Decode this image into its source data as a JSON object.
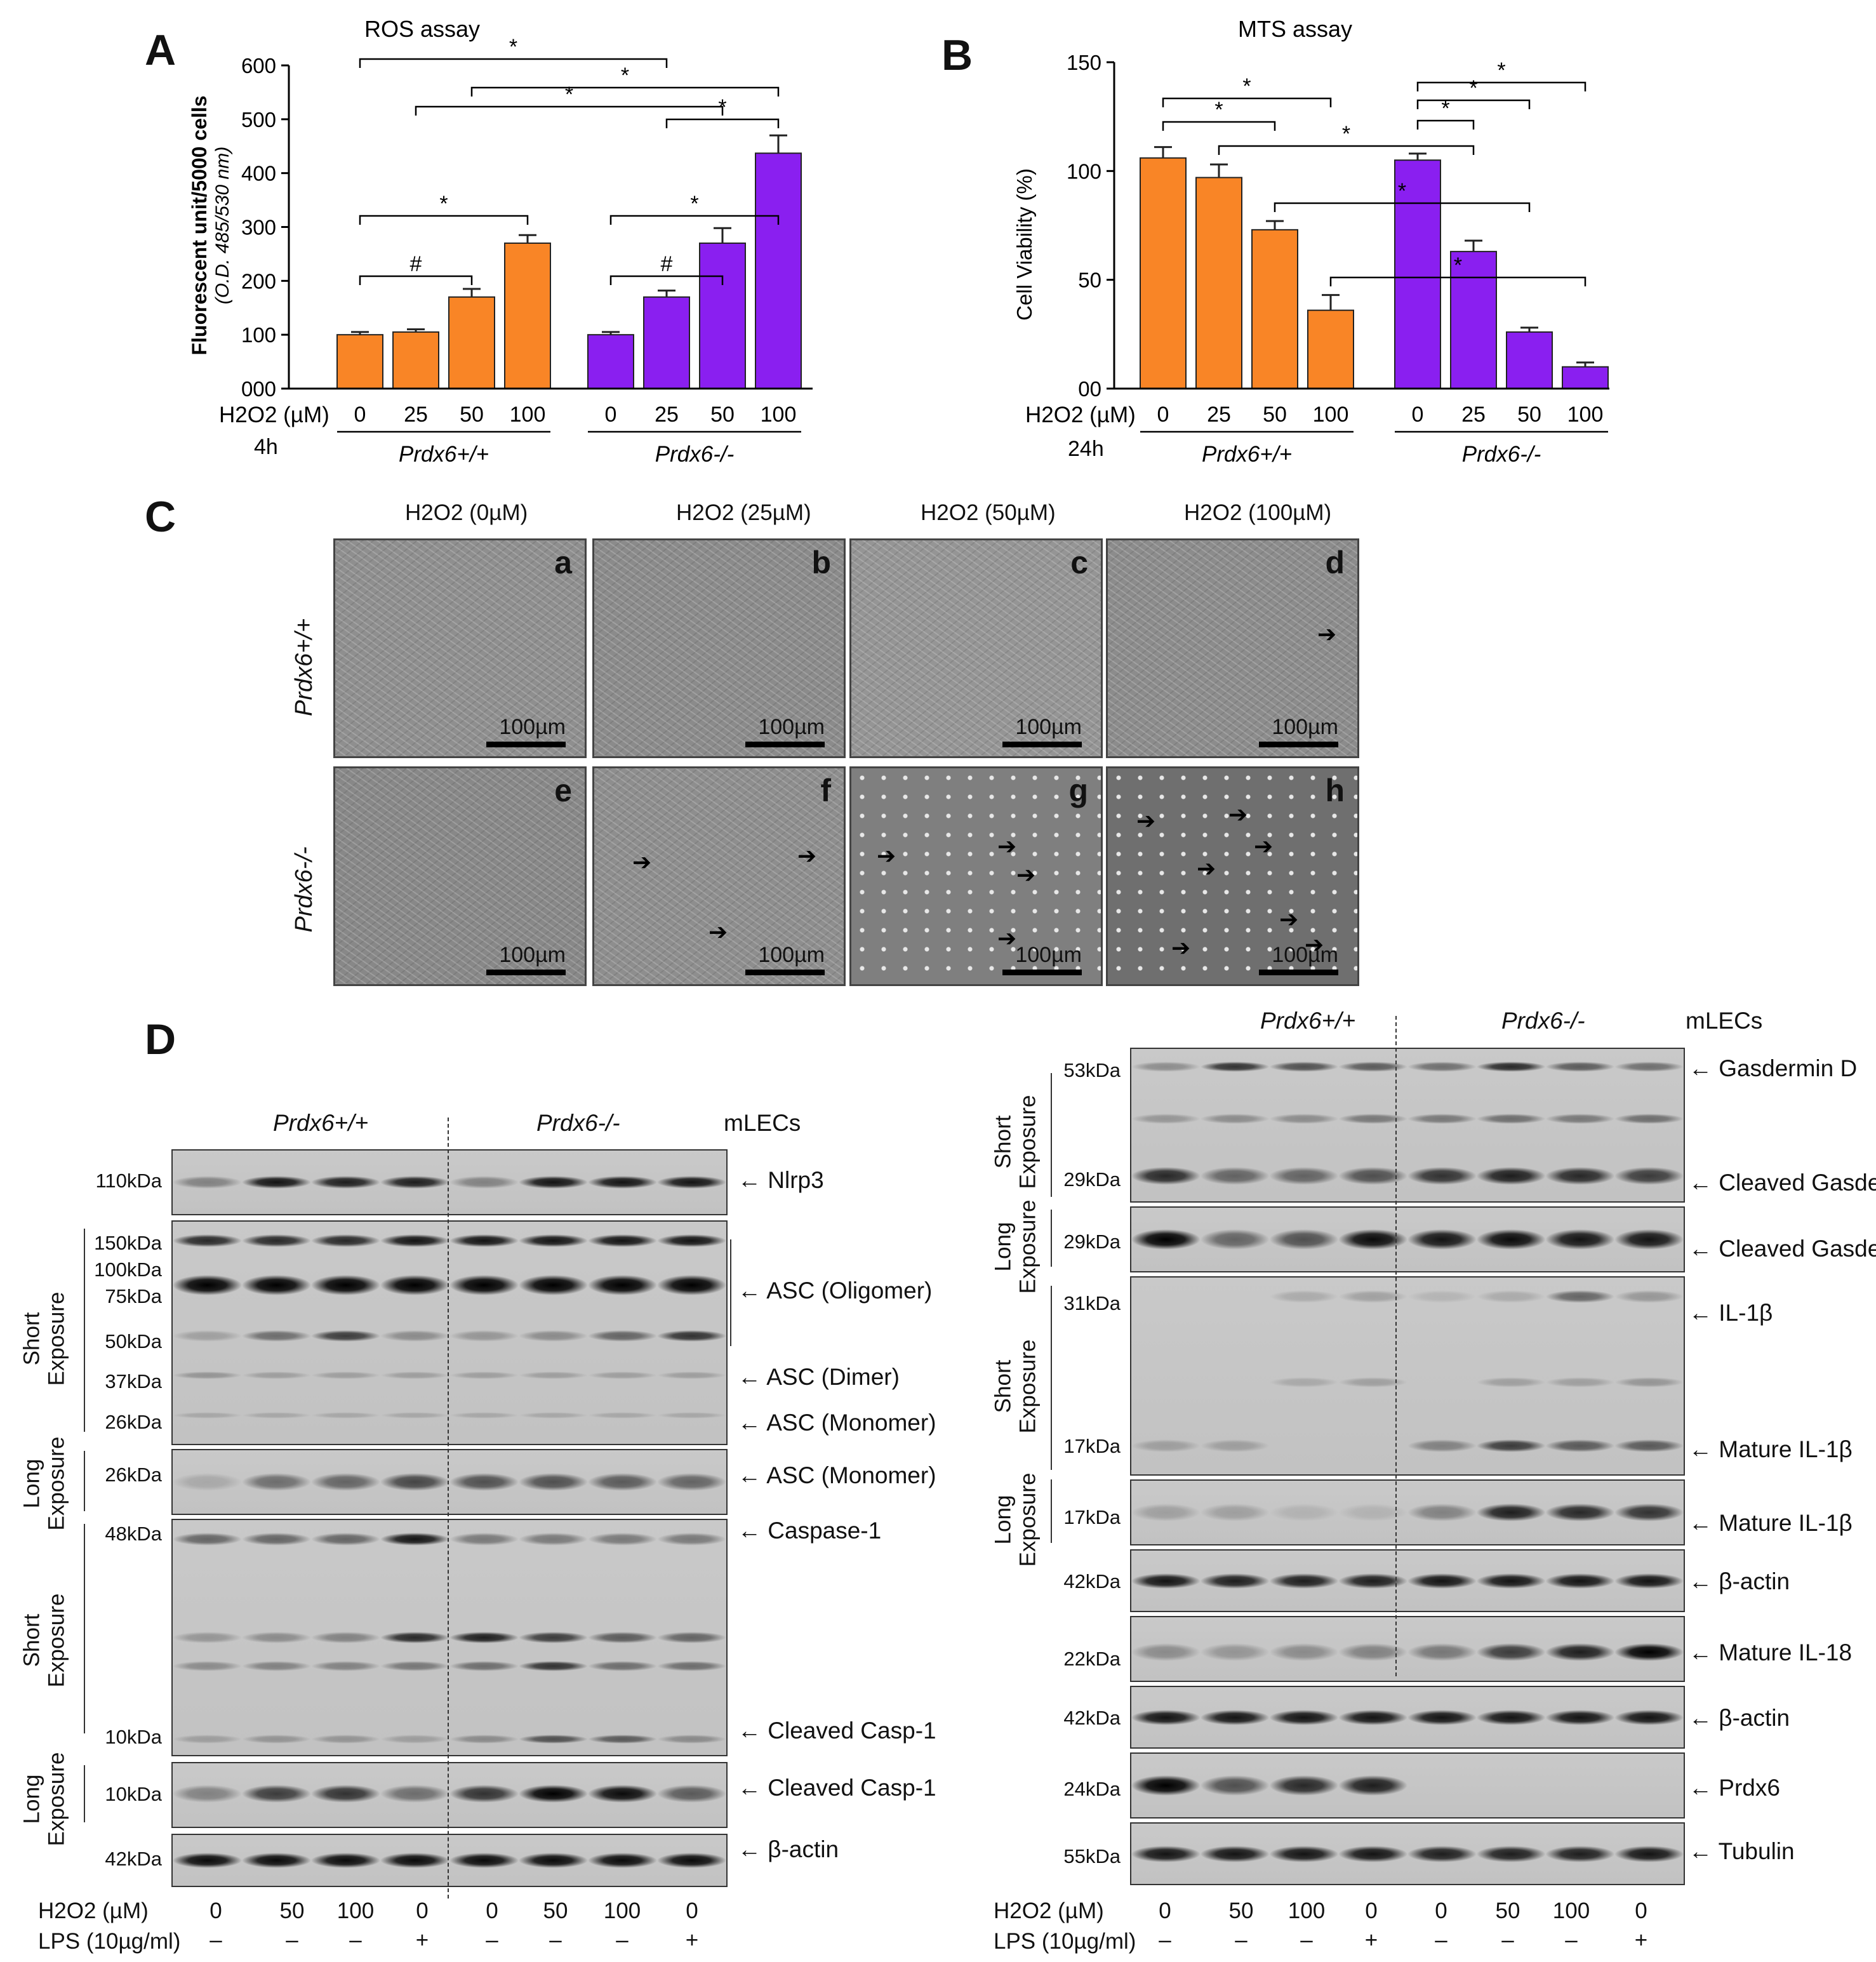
{
  "panels": {
    "a": "A",
    "b": "B",
    "c": "C",
    "d": "D"
  },
  "chart_data": [
    {
      "type": "bar",
      "title": "ROS assay",
      "ylabel": "Fluorescent unit/5000 cells",
      "ylabel_sub": "(O.D. 485/530 nm)",
      "xlabel": "H2O2 (µM)",
      "time": "4h",
      "ylim": [
        0,
        600
      ],
      "yticks": [
        "000",
        "100",
        "200",
        "300",
        "400",
        "500",
        "600"
      ],
      "groups": [
        {
          "name": "Prdx6+/+",
          "color": "#f98526",
          "categories": [
            "0",
            "25",
            "50",
            "100"
          ],
          "values": [
            100,
            105,
            170,
            270
          ],
          "errors": [
            5,
            5,
            15,
            15
          ]
        },
        {
          "name": "Prdx6-/-",
          "color": "#8a1ff0",
          "categories": [
            "0",
            "25",
            "50",
            "100"
          ],
          "values": [
            100,
            170,
            270,
            437
          ],
          "errors": [
            5,
            12,
            28,
            33
          ]
        }
      ],
      "annotations": [
        "*",
        "#",
        "*",
        "#",
        "*",
        "*",
        "*",
        "*"
      ]
    },
    {
      "type": "bar",
      "title": "MTS assay",
      "ylabel": "Cell Viability (%)",
      "xlabel": "H2O2 (µM)",
      "time": "24h",
      "ylim": [
        0,
        150
      ],
      "yticks": [
        "00",
        "50",
        "100",
        "150"
      ],
      "groups": [
        {
          "name": "Prdx6+/+",
          "color": "#f98526",
          "categories": [
            "0",
            "25",
            "50",
            "100"
          ],
          "values": [
            106,
            97,
            73,
            36
          ],
          "errors": [
            5,
            6,
            4,
            7
          ]
        },
        {
          "name": "Prdx6-/-",
          "color": "#8a1ff0",
          "categories": [
            "0",
            "25",
            "50",
            "100"
          ],
          "values": [
            105,
            63,
            26,
            10
          ],
          "errors": [
            3,
            5,
            2,
            2
          ]
        }
      ],
      "annotations": [
        "*",
        "*",
        "*",
        "*",
        "*",
        "*",
        "*",
        "*"
      ]
    }
  ],
  "micrographs": {
    "col_titles": [
      "H2O2 (0µM)",
      "H2O2 (25µM)",
      "H2O2 (50µM)",
      "H2O2 (100µM)"
    ],
    "row_labels": [
      "Prdx6+/+",
      "Prdx6-/-"
    ],
    "tiles": [
      "a",
      "b",
      "c",
      "d",
      "e",
      "f",
      "g",
      "h"
    ],
    "scale_bar": "100µm"
  },
  "blots_left": {
    "groups": [
      "Prdx6+/+",
      "Prdx6-/-"
    ],
    "cell": "mLECs",
    "mw": [
      "110kDa",
      "150kDa",
      "100kDa",
      "75kDa",
      "50kDa",
      "37kDa",
      "26kDa",
      "26kDa",
      "48kDa",
      "10kDa",
      "10kDa",
      "42kDa"
    ],
    "labels": [
      "Nlrp3",
      "ASC (Oligomer)",
      "ASC (Dimer)",
      "ASC (Monomer)",
      "ASC (Monomer)",
      "Caspase-1",
      "Cleaved Casp-1",
      "Cleaved Casp-1",
      "β-actin"
    ],
    "exposures": [
      "Short Exposure",
      "Long Exposure",
      "Short Exposure",
      "Long Exposure"
    ]
  },
  "blots_right": {
    "groups": [
      "Prdx6+/+",
      "Prdx6-/-"
    ],
    "cell": "mLECs",
    "mw": [
      "53kDa",
      "29kDa",
      "29kDa",
      "31kDa",
      "17kDa",
      "17kDa",
      "42kDa",
      "22kDa",
      "42kDa",
      "24kDa",
      "55kDa"
    ],
    "labels": [
      "Gasdermin D",
      "Cleaved Gasdermin D",
      "Cleaved Gasdermin D",
      "IL-1β",
      "Mature IL-1β",
      "Mature IL-1β",
      "β-actin",
      "Mature IL-18",
      "β-actin",
      "Prdx6",
      "Tubulin"
    ],
    "exposures": [
      "Short Exposure",
      "Long Exposure",
      "Short Exposure",
      "Long Exposure"
    ]
  },
  "treatment": {
    "h2o2_label": "H2O2 (µM)",
    "h2o2_values": [
      "0",
      "50",
      "100",
      "0",
      "0",
      "50",
      "100",
      "0"
    ],
    "lps_label": "LPS (10µg/ml)",
    "lps_values": [
      "–",
      "–",
      "–",
      "+",
      "–",
      "–",
      "–",
      "+"
    ]
  }
}
